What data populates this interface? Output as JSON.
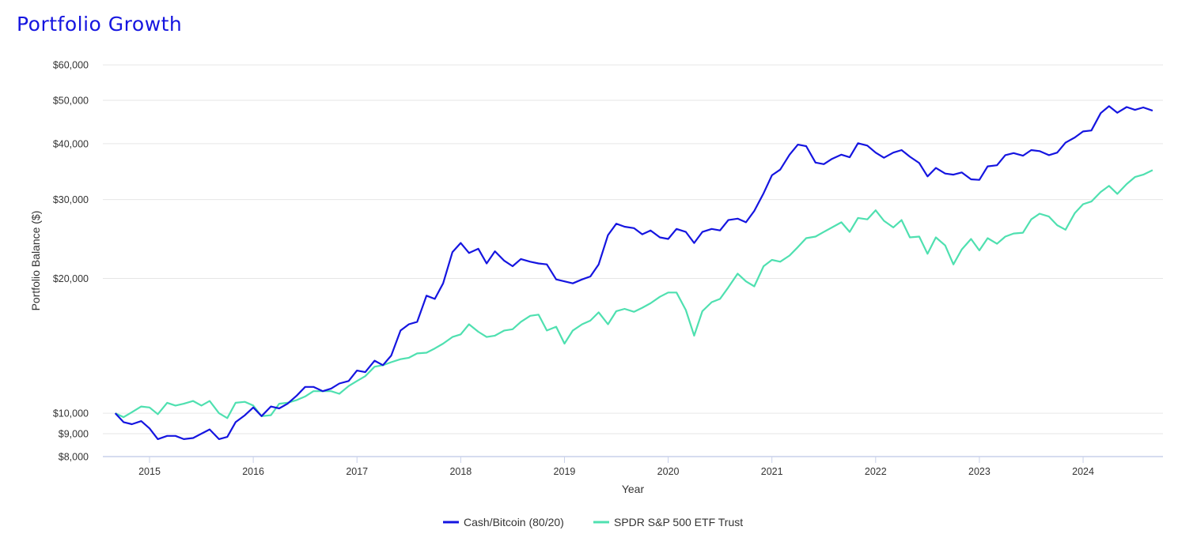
{
  "title": "Portfolio Growth",
  "chart_data": {
    "type": "line",
    "title": "Portfolio Growth",
    "xlabel": "Year",
    "ylabel": "Portfolio Balance ($)",
    "yscale": "log",
    "ylim": [
      8000,
      62000
    ],
    "xlim": [
      2014.55,
      2024.77
    ],
    "grid": true,
    "legend": "bottom-center",
    "y_ticks": [
      {
        "value": 8000,
        "label": "$8,000"
      },
      {
        "value": 9000,
        "label": "$9,000"
      },
      {
        "value": 10000,
        "label": "$10,000"
      },
      {
        "value": 20000,
        "label": "$20,000"
      },
      {
        "value": 30000,
        "label": "$30,000"
      },
      {
        "value": 40000,
        "label": "$40,000"
      },
      {
        "value": 50000,
        "label": "$50,000"
      },
      {
        "value": 60000,
        "label": "$60,000"
      }
    ],
    "x_ticks": [
      {
        "value": 2015,
        "label": "2015"
      },
      {
        "value": 2016,
        "label": "2016"
      },
      {
        "value": 2017,
        "label": "2017"
      },
      {
        "value": 2018,
        "label": "2018"
      },
      {
        "value": 2019,
        "label": "2019"
      },
      {
        "value": 2020,
        "label": "2020"
      },
      {
        "value": 2021,
        "label": "2021"
      },
      {
        "value": 2022,
        "label": "2022"
      },
      {
        "value": 2023,
        "label": "2023"
      },
      {
        "value": 2024,
        "label": "2024"
      }
    ],
    "series": [
      {
        "name": "Cash/Bitcoin (80/20)",
        "color": "#1515e0",
        "points": [
          [
            2014.67,
            10000
          ],
          [
            2014.75,
            9550
          ],
          [
            2014.83,
            9450
          ],
          [
            2014.92,
            9600
          ],
          [
            2015.0,
            9250
          ],
          [
            2015.08,
            8750
          ],
          [
            2015.17,
            8900
          ],
          [
            2015.25,
            8900
          ],
          [
            2015.33,
            8750
          ],
          [
            2015.42,
            8800
          ],
          [
            2015.5,
            9000
          ],
          [
            2015.58,
            9200
          ],
          [
            2015.67,
            8750
          ],
          [
            2015.75,
            8850
          ],
          [
            2015.83,
            9550
          ],
          [
            2015.92,
            9900
          ],
          [
            2016.0,
            10300
          ],
          [
            2016.08,
            9850
          ],
          [
            2016.17,
            10350
          ],
          [
            2016.25,
            10250
          ],
          [
            2016.33,
            10500
          ],
          [
            2016.42,
            10950
          ],
          [
            2016.5,
            11450
          ],
          [
            2016.58,
            11450
          ],
          [
            2016.67,
            11200
          ],
          [
            2016.75,
            11350
          ],
          [
            2016.83,
            11650
          ],
          [
            2016.92,
            11800
          ],
          [
            2017.0,
            12450
          ],
          [
            2017.08,
            12350
          ],
          [
            2017.17,
            13100
          ],
          [
            2017.25,
            12800
          ],
          [
            2017.33,
            13450
          ],
          [
            2017.42,
            15300
          ],
          [
            2017.5,
            15800
          ],
          [
            2017.58,
            16000
          ],
          [
            2017.67,
            18300
          ],
          [
            2017.75,
            18000
          ],
          [
            2017.83,
            19500
          ],
          [
            2017.92,
            22900
          ],
          [
            2018.0,
            24000
          ],
          [
            2018.08,
            22800
          ],
          [
            2018.17,
            23300
          ],
          [
            2018.25,
            21600
          ],
          [
            2018.33,
            23000
          ],
          [
            2018.42,
            21900
          ],
          [
            2018.5,
            21300
          ],
          [
            2018.58,
            22100
          ],
          [
            2018.67,
            21800
          ],
          [
            2018.75,
            21600
          ],
          [
            2018.83,
            21500
          ],
          [
            2018.92,
            19900
          ],
          [
            2019.0,
            19700
          ],
          [
            2019.08,
            19500
          ],
          [
            2019.17,
            19900
          ],
          [
            2019.25,
            20200
          ],
          [
            2019.33,
            21500
          ],
          [
            2019.42,
            25000
          ],
          [
            2019.5,
            26500
          ],
          [
            2019.58,
            26100
          ],
          [
            2019.67,
            25900
          ],
          [
            2019.75,
            25100
          ],
          [
            2019.83,
            25600
          ],
          [
            2019.92,
            24700
          ],
          [
            2020.0,
            24500
          ],
          [
            2020.08,
            25800
          ],
          [
            2020.17,
            25400
          ],
          [
            2020.25,
            24000
          ],
          [
            2020.33,
            25400
          ],
          [
            2020.42,
            25800
          ],
          [
            2020.5,
            25600
          ],
          [
            2020.58,
            27000
          ],
          [
            2020.67,
            27200
          ],
          [
            2020.75,
            26700
          ],
          [
            2020.83,
            28300
          ],
          [
            2020.92,
            31000
          ],
          [
            2021.0,
            34000
          ],
          [
            2021.08,
            35000
          ],
          [
            2021.17,
            37800
          ],
          [
            2021.25,
            39800
          ],
          [
            2021.33,
            39500
          ],
          [
            2021.42,
            36300
          ],
          [
            2021.5,
            36000
          ],
          [
            2021.58,
            37000
          ],
          [
            2021.67,
            37800
          ],
          [
            2021.75,
            37300
          ],
          [
            2021.83,
            40100
          ],
          [
            2021.92,
            39600
          ],
          [
            2022.0,
            38200
          ],
          [
            2022.08,
            37200
          ],
          [
            2022.17,
            38200
          ],
          [
            2022.25,
            38700
          ],
          [
            2022.33,
            37400
          ],
          [
            2022.42,
            36200
          ],
          [
            2022.5,
            33800
          ],
          [
            2022.58,
            35300
          ],
          [
            2022.67,
            34300
          ],
          [
            2022.75,
            34100
          ],
          [
            2022.83,
            34500
          ],
          [
            2022.92,
            33300
          ],
          [
            2023.0,
            33200
          ],
          [
            2023.08,
            35600
          ],
          [
            2023.17,
            35800
          ],
          [
            2023.25,
            37700
          ],
          [
            2023.33,
            38100
          ],
          [
            2023.42,
            37600
          ],
          [
            2023.5,
            38700
          ],
          [
            2023.58,
            38500
          ],
          [
            2023.67,
            37700
          ],
          [
            2023.75,
            38200
          ],
          [
            2023.83,
            40200
          ],
          [
            2023.92,
            41300
          ],
          [
            2024.0,
            42600
          ],
          [
            2024.08,
            42800
          ],
          [
            2024.17,
            46800
          ],
          [
            2024.25,
            48500
          ],
          [
            2024.33,
            46900
          ],
          [
            2024.42,
            48300
          ],
          [
            2024.5,
            47600
          ],
          [
            2024.58,
            48200
          ],
          [
            2024.67,
            47400
          ]
        ]
      },
      {
        "name": "SPDR S&P 500 ETF Trust",
        "color": "#4fe0b0",
        "points": [
          [
            2014.67,
            10000
          ],
          [
            2014.75,
            9800
          ],
          [
            2014.83,
            10050
          ],
          [
            2014.92,
            10350
          ],
          [
            2015.0,
            10300
          ],
          [
            2015.08,
            9950
          ],
          [
            2015.17,
            10550
          ],
          [
            2015.25,
            10400
          ],
          [
            2015.33,
            10500
          ],
          [
            2015.42,
            10650
          ],
          [
            2015.5,
            10400
          ],
          [
            2015.58,
            10650
          ],
          [
            2015.67,
            10000
          ],
          [
            2015.75,
            9750
          ],
          [
            2015.83,
            10550
          ],
          [
            2015.92,
            10600
          ],
          [
            2016.0,
            10400
          ],
          [
            2016.08,
            9850
          ],
          [
            2016.17,
            9900
          ],
          [
            2016.25,
            10500
          ],
          [
            2016.33,
            10550
          ],
          [
            2016.42,
            10700
          ],
          [
            2016.5,
            10900
          ],
          [
            2016.58,
            11200
          ],
          [
            2016.67,
            11200
          ],
          [
            2016.75,
            11200
          ],
          [
            2016.83,
            11050
          ],
          [
            2016.92,
            11500
          ],
          [
            2017.0,
            11800
          ],
          [
            2017.08,
            12100
          ],
          [
            2017.17,
            12700
          ],
          [
            2017.25,
            12800
          ],
          [
            2017.33,
            13000
          ],
          [
            2017.42,
            13200
          ],
          [
            2017.5,
            13300
          ],
          [
            2017.58,
            13600
          ],
          [
            2017.67,
            13650
          ],
          [
            2017.75,
            13950
          ],
          [
            2017.83,
            14300
          ],
          [
            2017.92,
            14800
          ],
          [
            2018.0,
            15000
          ],
          [
            2018.08,
            15800
          ],
          [
            2018.17,
            15200
          ],
          [
            2018.25,
            14800
          ],
          [
            2018.33,
            14900
          ],
          [
            2018.42,
            15300
          ],
          [
            2018.5,
            15400
          ],
          [
            2018.58,
            16000
          ],
          [
            2018.67,
            16500
          ],
          [
            2018.75,
            16600
          ],
          [
            2018.83,
            15300
          ],
          [
            2018.92,
            15600
          ],
          [
            2019.0,
            14300
          ],
          [
            2019.08,
            15300
          ],
          [
            2019.17,
            15800
          ],
          [
            2019.25,
            16100
          ],
          [
            2019.33,
            16800
          ],
          [
            2019.42,
            15800
          ],
          [
            2019.5,
            16900
          ],
          [
            2019.58,
            17100
          ],
          [
            2019.67,
            16850
          ],
          [
            2019.75,
            17200
          ],
          [
            2019.83,
            17600
          ],
          [
            2019.92,
            18200
          ],
          [
            2020.0,
            18600
          ],
          [
            2020.08,
            18600
          ],
          [
            2020.17,
            17000
          ],
          [
            2020.25,
            14900
          ],
          [
            2020.33,
            16900
          ],
          [
            2020.42,
            17700
          ],
          [
            2020.5,
            18000
          ],
          [
            2020.58,
            19100
          ],
          [
            2020.67,
            20500
          ],
          [
            2020.75,
            19700
          ],
          [
            2020.83,
            19200
          ],
          [
            2020.92,
            21300
          ],
          [
            2021.0,
            22000
          ],
          [
            2021.08,
            21800
          ],
          [
            2021.17,
            22500
          ],
          [
            2021.25,
            23500
          ],
          [
            2021.33,
            24600
          ],
          [
            2021.42,
            24800
          ],
          [
            2021.5,
            25400
          ],
          [
            2021.58,
            26000
          ],
          [
            2021.67,
            26700
          ],
          [
            2021.75,
            25400
          ],
          [
            2021.83,
            27300
          ],
          [
            2021.92,
            27100
          ],
          [
            2022.0,
            28400
          ],
          [
            2022.08,
            26900
          ],
          [
            2022.17,
            26000
          ],
          [
            2022.25,
            27000
          ],
          [
            2022.33,
            24700
          ],
          [
            2022.42,
            24800
          ],
          [
            2022.5,
            22700
          ],
          [
            2022.58,
            24700
          ],
          [
            2022.67,
            23700
          ],
          [
            2022.75,
            21500
          ],
          [
            2022.83,
            23200
          ],
          [
            2022.92,
            24500
          ],
          [
            2023.0,
            23100
          ],
          [
            2023.08,
            24600
          ],
          [
            2023.17,
            23900
          ],
          [
            2023.25,
            24800
          ],
          [
            2023.33,
            25200
          ],
          [
            2023.42,
            25300
          ],
          [
            2023.5,
            27100
          ],
          [
            2023.58,
            27900
          ],
          [
            2023.67,
            27500
          ],
          [
            2023.75,
            26300
          ],
          [
            2023.83,
            25700
          ],
          [
            2023.92,
            28000
          ],
          [
            2024.0,
            29300
          ],
          [
            2024.08,
            29700
          ],
          [
            2024.17,
            31200
          ],
          [
            2024.25,
            32200
          ],
          [
            2024.33,
            30900
          ],
          [
            2024.42,
            32500
          ],
          [
            2024.5,
            33700
          ],
          [
            2024.58,
            34100
          ],
          [
            2024.67,
            34900
          ]
        ]
      }
    ]
  }
}
